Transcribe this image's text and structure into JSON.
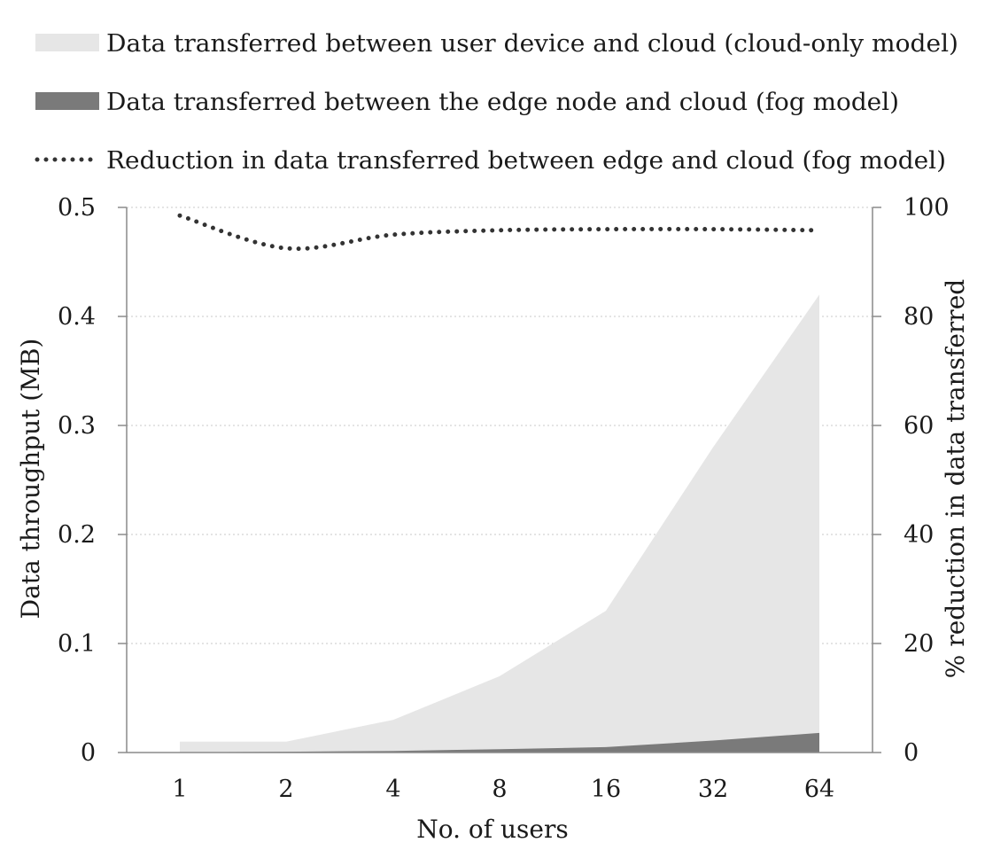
{
  "chart_data": {
    "type": "area",
    "categories": [
      "1",
      "2",
      "4",
      "8",
      "16",
      "32",
      "64"
    ],
    "xlabel": "No. of users",
    "ylabel": "Data throughput (MB)",
    "y2label": "% reduction in data transferred",
    "ylim": [
      0,
      0.5
    ],
    "y2lim": [
      0,
      100
    ],
    "yticks": [
      "0",
      "0.1",
      "0.2",
      "0.3",
      "0.4",
      "0.5"
    ],
    "y2ticks": [
      "0",
      "20",
      "40",
      "60",
      "80",
      "100"
    ],
    "grid": "horizontal dotted",
    "legend_position": "top",
    "series": [
      {
        "name": "Data transferred between user device and cloud (cloud-only model)",
        "type": "area",
        "axis": "left",
        "color": "#e6e6e6",
        "values": [
          0.01,
          0.01,
          0.03,
          0.07,
          0.13,
          0.28,
          0.42
        ]
      },
      {
        "name": "Data transferred between the edge node and cloud (fog model)",
        "type": "area",
        "axis": "left",
        "color": "#7a7a7a",
        "values": [
          0.0002,
          0.0007,
          0.0015,
          0.003,
          0.005,
          0.011,
          0.018
        ]
      },
      {
        "name": "Reduction in data transferred between edge and cloud (fog model)",
        "type": "line",
        "style": "dotted",
        "axis": "right",
        "color": "#333333",
        "values": [
          98.5,
          92.5,
          95,
          95.8,
          96,
          96,
          95.8
        ]
      }
    ]
  }
}
